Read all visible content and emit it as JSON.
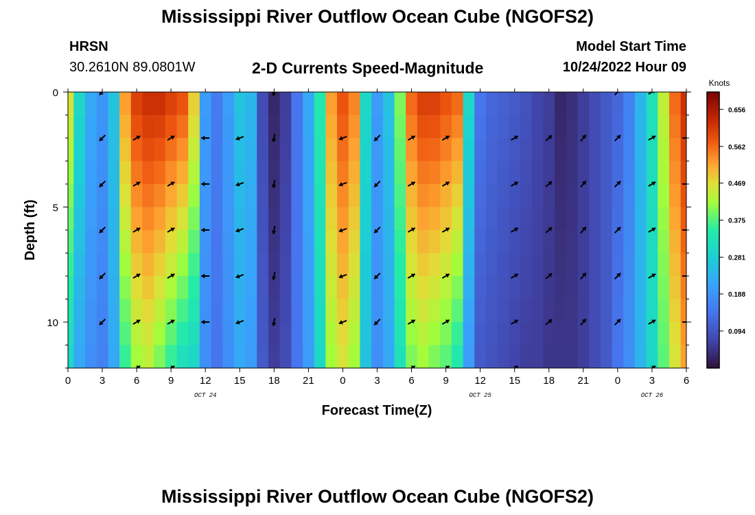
{
  "header": {
    "title": "Mississippi River Outflow Ocean Cube (NGOFS2)",
    "station": "HRSN",
    "coords": "30.2610N  89.0801W",
    "product": "2-D Currents Speed-Magnitude",
    "model_start_label": "Model Start Time",
    "model_start_value": "10/24/2022 Hour 09"
  },
  "footer": {
    "title": "Mississippi River Outflow Ocean Cube (NGOFS2)"
  },
  "chart_data": {
    "type": "heatmap",
    "title": "2-D Currents Speed-Magnitude",
    "xlabel": "Forecast Time(Z)",
    "ylabel": "Depth (ft)",
    "x_range_hours": [
      0,
      54
    ],
    "y_range_ft": [
      0,
      12
    ],
    "x_tick_hours": [
      0,
      3,
      6,
      9,
      12,
      15,
      18,
      21,
      24,
      27,
      30,
      33,
      36,
      39,
      42,
      45,
      48,
      51,
      54
    ],
    "x_tick_labels": [
      "0",
      "3",
      "6",
      "9",
      "12",
      "15",
      "18",
      "21",
      "0",
      "3",
      "6",
      "9",
      "12",
      "15",
      "18",
      "21",
      "0",
      "3",
      "6"
    ],
    "y_ticks": [
      0,
      5,
      10
    ],
    "y_tick_labels": [
      "0",
      "5",
      "10"
    ],
    "date_labels": [
      {
        "hour": 12,
        "text": "OCT 24"
      },
      {
        "hour": 36,
        "text": "OCT 25"
      },
      {
        "hour": 51,
        "text": "OCT 26"
      }
    ],
    "colorbar": {
      "unit": "Knots",
      "min": 0.0,
      "max": 0.7,
      "ticks": [
        0.094,
        0.188,
        0.281,
        0.375,
        0.469,
        0.562,
        0.656
      ],
      "tick_labels": [
        "0.094",
        "0.188",
        "0.281",
        "0.375",
        "0.469",
        "0.562",
        "0.656"
      ]
    },
    "speed_profile": {
      "hours": [
        0,
        1,
        2,
        3,
        4,
        5,
        6,
        7,
        8,
        9,
        10,
        11,
        12,
        13,
        14,
        15,
        16,
        17,
        18,
        19,
        20,
        21,
        22,
        23,
        24,
        25,
        26,
        27,
        28,
        29,
        30,
        31,
        32,
        33,
        34,
        35,
        36,
        37,
        38,
        39,
        40,
        41,
        42,
        43,
        44,
        45,
        46,
        47,
        48,
        49,
        50,
        51,
        52,
        53,
        54
      ],
      "surface": [
        0.46,
        0.3,
        0.22,
        0.19,
        0.26,
        0.52,
        0.6,
        0.62,
        0.62,
        0.6,
        0.58,
        0.48,
        0.2,
        0.15,
        0.2,
        0.26,
        0.24,
        0.08,
        0.03,
        0.06,
        0.14,
        0.22,
        0.34,
        0.52,
        0.58,
        0.54,
        0.3,
        0.2,
        0.26,
        0.4,
        0.56,
        0.6,
        0.6,
        0.58,
        0.56,
        0.3,
        0.14,
        0.12,
        0.11,
        0.1,
        0.09,
        0.07,
        0.06,
        0.03,
        0.04,
        0.06,
        0.08,
        0.1,
        0.12,
        0.16,
        0.24,
        0.32,
        0.44,
        0.56,
        0.62
      ],
      "bottom": [
        0.3,
        0.22,
        0.18,
        0.16,
        0.22,
        0.36,
        0.42,
        0.44,
        0.4,
        0.36,
        0.32,
        0.3,
        0.18,
        0.14,
        0.18,
        0.22,
        0.2,
        0.1,
        0.06,
        0.08,
        0.14,
        0.2,
        0.3,
        0.42,
        0.46,
        0.42,
        0.26,
        0.18,
        0.22,
        0.32,
        0.4,
        0.42,
        0.4,
        0.38,
        0.34,
        0.2,
        0.1,
        0.09,
        0.08,
        0.07,
        0.06,
        0.06,
        0.05,
        0.05,
        0.05,
        0.06,
        0.08,
        0.1,
        0.14,
        0.18,
        0.24,
        0.3,
        0.38,
        0.46,
        0.52
      ]
    },
    "vectors": {
      "hours": [
        3,
        6,
        9,
        12,
        15,
        18,
        24,
        27,
        30,
        33,
        36,
        39,
        42,
        45,
        48,
        51,
        54
      ],
      "depths_ft": [
        0,
        2,
        4,
        6,
        8,
        10,
        12
      ],
      "direction_deg_by_hour": [
        225,
        60,
        60,
        270,
        250,
        190,
        250,
        225,
        60,
        60,
        70,
        60,
        50,
        40,
        45,
        60,
        90
      ],
      "shown": [
        [
          true,
          false,
          false,
          false,
          false,
          true,
          false,
          false,
          false,
          false,
          false,
          false,
          false,
          false,
          true,
          true,
          false
        ],
        [
          true,
          true,
          true,
          true,
          true,
          true,
          true,
          true,
          true,
          true,
          false,
          true,
          true,
          true,
          true,
          true,
          true
        ],
        [
          true,
          true,
          true,
          true,
          true,
          true,
          true,
          true,
          true,
          true,
          false,
          true,
          true,
          true,
          true,
          true,
          true
        ],
        [
          true,
          true,
          true,
          true,
          true,
          true,
          true,
          true,
          true,
          true,
          false,
          true,
          true,
          true,
          true,
          true,
          true
        ],
        [
          true,
          true,
          true,
          true,
          true,
          true,
          true,
          true,
          true,
          true,
          false,
          true,
          true,
          true,
          true,
          true,
          true
        ],
        [
          true,
          true,
          true,
          true,
          true,
          true,
          true,
          true,
          true,
          true,
          false,
          true,
          true,
          true,
          true,
          true,
          true
        ],
        [
          false,
          true,
          true,
          false,
          false,
          false,
          false,
          false,
          true,
          true,
          false,
          true,
          false,
          false,
          false,
          true,
          false
        ]
      ]
    }
  }
}
